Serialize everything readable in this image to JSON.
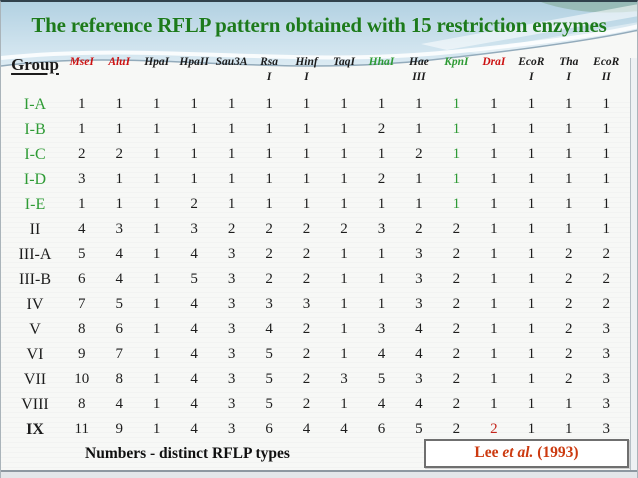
{
  "slide": {
    "title": "The reference RFLP pattern obtained with 15 restriction enzymes",
    "footer_note": "Numbers - distinct RFLP types",
    "citation": {
      "pre": "Lee ",
      "mid": "et al.",
      "post": " (1993)"
    }
  },
  "table": {
    "group_header": "Group",
    "enzymes": [
      {
        "line1": "MseI",
        "line2": "",
        "color": "red"
      },
      {
        "line1": "AluI",
        "line2": "",
        "color": "red"
      },
      {
        "line1": "HpaI",
        "line2": "",
        "color": "black"
      },
      {
        "line1": "HpaII",
        "line2": "",
        "color": "black"
      },
      {
        "line1": "Sau3A",
        "line2": "",
        "color": "black"
      },
      {
        "line1": "Rsa",
        "line2": "I",
        "color": "black"
      },
      {
        "line1": "Hinf",
        "line2": "I",
        "color": "black"
      },
      {
        "line1": "TaqI",
        "line2": "",
        "color": "black"
      },
      {
        "line1": "HhaI",
        "line2": "",
        "color": "green"
      },
      {
        "line1": "Hae",
        "line2": "III",
        "color": "black"
      },
      {
        "line1": "KpnI",
        "line2": "",
        "color": "green"
      },
      {
        "line1": "DraI",
        "line2": "",
        "color": "red"
      },
      {
        "line1": "EcoR",
        "line2": "I",
        "color": "black"
      },
      {
        "line1": "Tha",
        "line2": "I",
        "color": "black"
      },
      {
        "line1": "EcoR",
        "line2": "II",
        "color": "black"
      }
    ],
    "rows": [
      {
        "group": "I-A",
        "label_color": "green",
        "values": [
          1,
          1,
          1,
          1,
          1,
          1,
          1,
          1,
          1,
          1,
          1,
          1,
          1,
          1,
          1
        ],
        "highlights": {
          "10": "green"
        }
      },
      {
        "group": "I-B",
        "label_color": "green",
        "values": [
          1,
          1,
          1,
          1,
          1,
          1,
          1,
          1,
          2,
          1,
          1,
          1,
          1,
          1,
          1
        ],
        "highlights": {
          "10": "green"
        }
      },
      {
        "group": "I-C",
        "label_color": "green",
        "values": [
          2,
          2,
          1,
          1,
          1,
          1,
          1,
          1,
          1,
          2,
          1,
          1,
          1,
          1,
          1
        ],
        "highlights": {
          "10": "green"
        }
      },
      {
        "group": "I-D",
        "label_color": "green",
        "values": [
          3,
          1,
          1,
          1,
          1,
          1,
          1,
          1,
          2,
          1,
          1,
          1,
          1,
          1,
          1
        ],
        "highlights": {
          "10": "green"
        }
      },
      {
        "group": "I-E",
        "label_color": "green",
        "values": [
          1,
          1,
          1,
          2,
          1,
          1,
          1,
          1,
          1,
          1,
          1,
          1,
          1,
          1,
          1
        ],
        "highlights": {
          "10": "green"
        }
      },
      {
        "group": "II",
        "label_color": "black",
        "values": [
          4,
          3,
          1,
          3,
          2,
          2,
          2,
          2,
          3,
          2,
          2,
          1,
          1,
          1,
          1
        ]
      },
      {
        "group": "III-A",
        "label_color": "black",
        "values": [
          5,
          4,
          1,
          4,
          3,
          2,
          2,
          1,
          1,
          3,
          2,
          1,
          1,
          2,
          2
        ]
      },
      {
        "group": "III-B",
        "label_color": "black",
        "values": [
          6,
          4,
          1,
          5,
          3,
          2,
          2,
          1,
          1,
          3,
          2,
          1,
          1,
          2,
          2
        ]
      },
      {
        "group": "IV",
        "label_color": "black",
        "values": [
          7,
          5,
          1,
          4,
          3,
          3,
          3,
          1,
          1,
          3,
          2,
          1,
          1,
          2,
          2
        ]
      },
      {
        "group": "V",
        "label_color": "black",
        "values": [
          8,
          6,
          1,
          4,
          3,
          4,
          2,
          1,
          3,
          4,
          2,
          1,
          1,
          2,
          3
        ]
      },
      {
        "group": "VI",
        "label_color": "black",
        "values": [
          9,
          7,
          1,
          4,
          3,
          5,
          2,
          1,
          4,
          4,
          2,
          1,
          1,
          2,
          3
        ]
      },
      {
        "group": "VII",
        "label_color": "black",
        "values": [
          10,
          8,
          1,
          4,
          3,
          5,
          2,
          3,
          5,
          3,
          2,
          1,
          1,
          2,
          3
        ]
      },
      {
        "group": "VIII",
        "label_color": "black",
        "values": [
          8,
          4,
          1,
          4,
          3,
          5,
          2,
          1,
          4,
          4,
          2,
          1,
          1,
          1,
          3
        ]
      },
      {
        "group": "IX",
        "label_color": "black",
        "bold": true,
        "values": [
          11,
          9,
          1,
          4,
          3,
          6,
          4,
          4,
          6,
          5,
          2,
          2,
          1,
          1,
          3
        ],
        "highlights": {
          "11": "red"
        }
      }
    ]
  },
  "colors": {
    "title_green": "#1c7a1c",
    "text": "#1c1c1c",
    "enzyme_red": "#cc1111",
    "enzyme_green": "#2e9b35",
    "group_green": "#2e9b35",
    "cell_red": "#c4251c",
    "citation_red": "#cc3a10"
  }
}
